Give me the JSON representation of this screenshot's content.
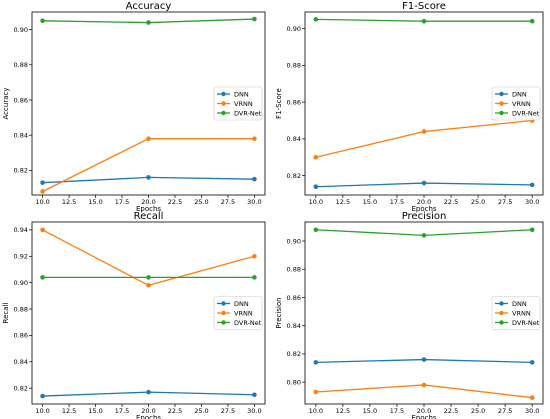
{
  "chart_data": [
    {
      "type": "line",
      "title": "Accuracy",
      "xlabel": "Epochs",
      "ylabel": "Accuracy",
      "x": [
        10,
        20,
        30
      ],
      "xlim": [
        9.0,
        31.0
      ],
      "ylim": [
        0.806,
        0.91
      ],
      "xticks": [
        "10.0",
        "12.5",
        "15.0",
        "17.5",
        "20.0",
        "22.5",
        "25.0",
        "27.5",
        "30.0"
      ],
      "yticks": [
        "0.82",
        "0.84",
        "0.86",
        "0.88",
        "0.90"
      ],
      "legend_position": "center-right",
      "grid": false,
      "series": [
        {
          "name": "DNN",
          "color": "#1f77b4",
          "values": [
            0.813,
            0.816,
            0.815
          ]
        },
        {
          "name": "VRNN",
          "color": "#ff7f0e",
          "values": [
            0.808,
            0.838,
            0.838
          ]
        },
        {
          "name": "DVR-Net",
          "color": "#2ca02c",
          "values": [
            0.905,
            0.904,
            0.906
          ]
        }
      ]
    },
    {
      "type": "line",
      "title": "F1-Score",
      "xlabel": "Epochs",
      "ylabel": "F1-Score",
      "x": [
        10,
        20,
        30
      ],
      "xlim": [
        9.0,
        31.0
      ],
      "ylim": [
        0.8095,
        0.909
      ],
      "xticks": [
        "10.0",
        "12.5",
        "15.0",
        "17.5",
        "20.0",
        "22.5",
        "25.0",
        "27.5",
        "30.0"
      ],
      "yticks": [
        "0.82",
        "0.84",
        "0.86",
        "0.88",
        "0.90"
      ],
      "legend_position": "center-right",
      "grid": false,
      "series": [
        {
          "name": "DNN",
          "color": "#1f77b4",
          "values": [
            0.814,
            0.816,
            0.815
          ]
        },
        {
          "name": "VRNN",
          "color": "#ff7f0e",
          "values": [
            0.83,
            0.844,
            0.85
          ]
        },
        {
          "name": "DVR-Net",
          "color": "#2ca02c",
          "values": [
            0.905,
            0.904,
            0.904
          ]
        }
      ]
    },
    {
      "type": "line",
      "title": "Recall",
      "xlabel": "Epochs",
      "ylabel": "Recall",
      "x": [
        10,
        20,
        30
      ],
      "xlim": [
        9.0,
        31.0
      ],
      "ylim": [
        0.808,
        0.946
      ],
      "xticks": [
        "10.0",
        "12.5",
        "15.0",
        "17.5",
        "20.0",
        "22.5",
        "25.0",
        "27.5",
        "30.0"
      ],
      "yticks": [
        "0.82",
        "0.84",
        "0.86",
        "0.88",
        "0.90",
        "0.92",
        "0.94"
      ],
      "legend_position": "center-right",
      "grid": false,
      "series": [
        {
          "name": "DNN",
          "color": "#1f77b4",
          "values": [
            0.814,
            0.817,
            0.815
          ]
        },
        {
          "name": "VRNN",
          "color": "#ff7f0e",
          "values": [
            0.94,
            0.898,
            0.92
          ]
        },
        {
          "name": "DVR-Net",
          "color": "#2ca02c",
          "values": [
            0.904,
            0.904,
            0.904
          ]
        }
      ]
    },
    {
      "type": "line",
      "title": "Precision",
      "xlabel": "Epochs",
      "ylabel": "Precision",
      "x": [
        10,
        20,
        30
      ],
      "xlim": [
        9.0,
        31.0
      ],
      "ylim": [
        0.7845,
        0.9135
      ],
      "xticks": [
        "10.0",
        "12.5",
        "15.0",
        "17.5",
        "20.0",
        "22.5",
        "25.0",
        "27.5",
        "30.0"
      ],
      "yticks": [
        "0.80",
        "0.82",
        "0.84",
        "0.86",
        "0.88",
        "0.90"
      ],
      "legend_position": "center-right",
      "grid": false,
      "series": [
        {
          "name": "DNN",
          "color": "#1f77b4",
          "values": [
            0.814,
            0.816,
            0.814
          ]
        },
        {
          "name": "VRNN",
          "color": "#ff7f0e",
          "values": [
            0.793,
            0.798,
            0.789
          ]
        },
        {
          "name": "DVR-Net",
          "color": "#2ca02c",
          "values": [
            0.908,
            0.904,
            0.908
          ]
        }
      ]
    }
  ]
}
